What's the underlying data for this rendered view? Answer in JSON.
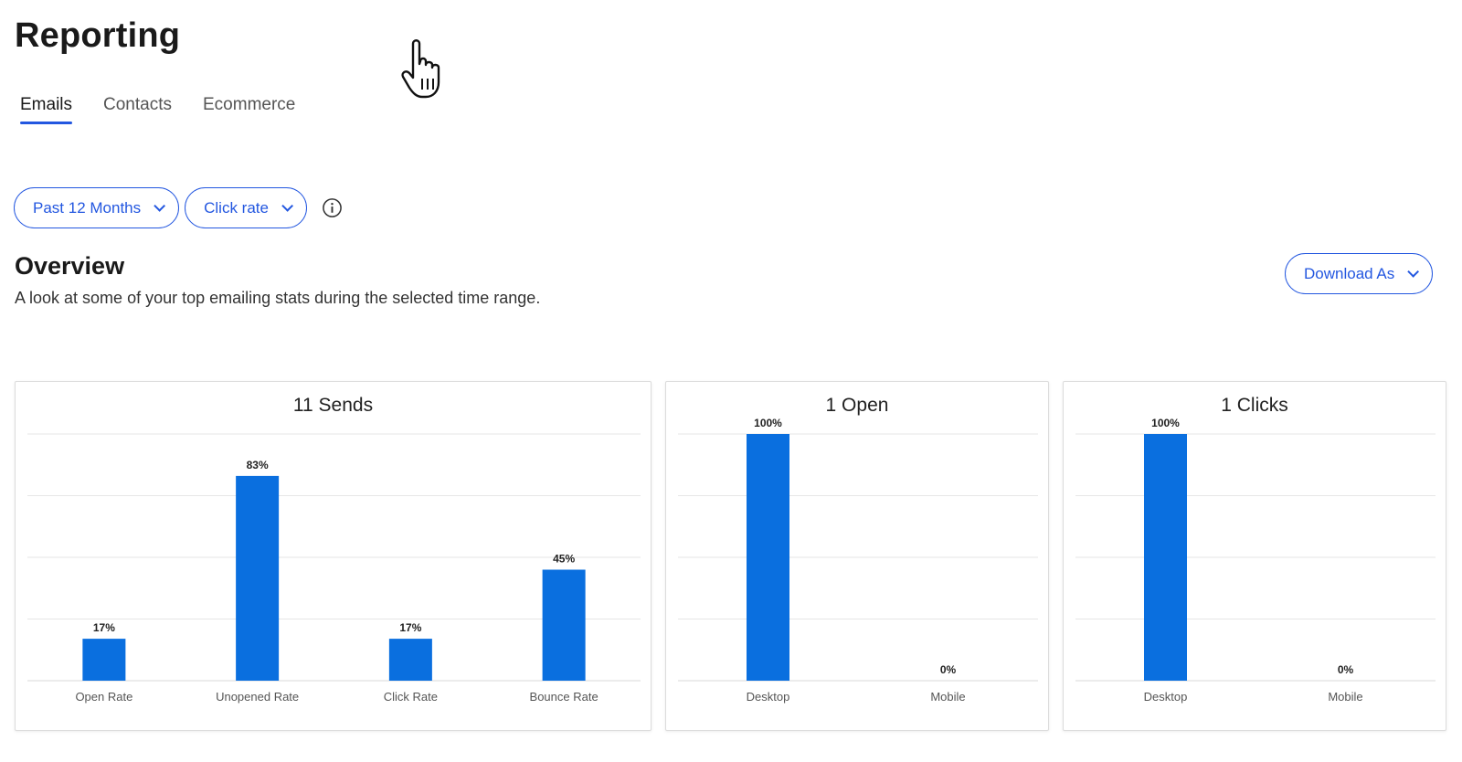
{
  "header": {
    "title": "Reporting"
  },
  "tabs": [
    {
      "label": "Emails",
      "active": true
    },
    {
      "label": "Contacts",
      "active": false
    },
    {
      "label": "Ecommerce",
      "active": false
    }
  ],
  "filters": {
    "time_range": "Past 12 Months",
    "metric": "Click rate",
    "info_icon": "info-icon"
  },
  "overview": {
    "title": "Overview",
    "subtitle": "A look at some of your top emailing stats during the selected time range.",
    "download_label": "Download As"
  },
  "colors": {
    "accent": "#2357e0",
    "bar": "#0a6fdf",
    "grid": "#e6e6e6"
  },
  "chart_data": [
    {
      "type": "bar",
      "title": "11 Sends",
      "categories": [
        "Open Rate",
        "Unopened Rate",
        "Click Rate",
        "Bounce Rate"
      ],
      "values": [
        17,
        83,
        17,
        45
      ],
      "labels": [
        "17%",
        "83%",
        "17%",
        "45%"
      ],
      "ylim": [
        0,
        100
      ],
      "grid": true
    },
    {
      "type": "bar",
      "title": "1 Open",
      "categories": [
        "Desktop",
        "Mobile"
      ],
      "values": [
        100,
        0
      ],
      "labels": [
        "100%",
        "0%"
      ],
      "ylim": [
        0,
        100
      ],
      "grid": true
    },
    {
      "type": "bar",
      "title": "1 Clicks",
      "categories": [
        "Desktop",
        "Mobile"
      ],
      "values": [
        100,
        0
      ],
      "labels": [
        "100%",
        "0%"
      ],
      "ylim": [
        0,
        100
      ],
      "grid": true
    }
  ]
}
